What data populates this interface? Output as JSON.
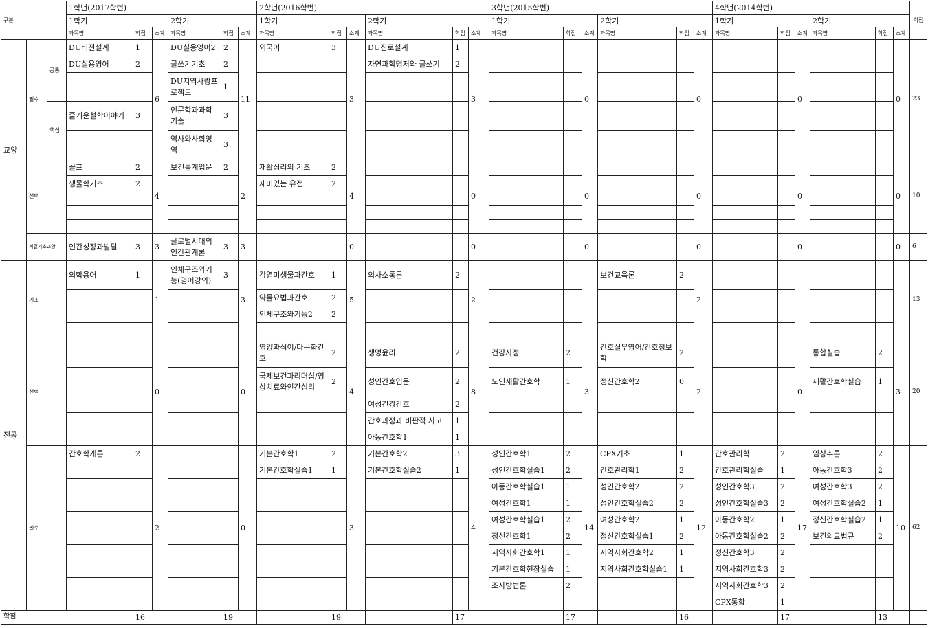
{
  "header": {
    "division": "구분",
    "total_credit": "학점",
    "years": [
      "1학년(2017학번)",
      "2학년(2016학번)",
      "3학년(2015학번)",
      "4학년(2014학번)"
    ],
    "semesters": [
      "1학기",
      "2학기"
    ],
    "col_name": "과목명",
    "col_credit": "학점",
    "col_subtotal": "소계"
  },
  "labels": {
    "liberal": "교양",
    "major": "전공",
    "required": "필수",
    "common": "공통",
    "core": "핵심",
    "elective": "선택",
    "field_basic": "계열기초교양",
    "basic": "기초"
  },
  "groups": [
    {
      "key": "liberal-required",
      "total": "23",
      "sems": [
        {
          "sub": "6",
          "courses": [
            [
              "DU비전설계",
              "1"
            ],
            [
              "DU실용영어",
              "2"
            ],
            [
              "",
              ""
            ],
            [
              "즐거운철학이야기",
              "3"
            ]
          ]
        },
        {
          "sub": "11",
          "courses": [
            [
              "DU실용영어2",
              "2"
            ],
            [
              "글쓰기기초",
              "2"
            ],
            [
              "DU지역사랑프로젝트",
              "1"
            ],
            [
              "인문학과과학기술",
              "3"
            ],
            [
              "역사와사회영역",
              "3"
            ]
          ]
        },
        {
          "sub": "3",
          "courses": [
            [
              "외국어",
              "3"
            ]
          ]
        },
        {
          "sub": "3",
          "courses": [
            [
              "DU진로설계",
              "1"
            ],
            [
              "자연과학명저와 글쓰기",
              "2"
            ]
          ]
        },
        {
          "sub": "0",
          "courses": []
        },
        {
          "sub": "0",
          "courses": []
        },
        {
          "sub": "0",
          "courses": []
        },
        {
          "sub": "0",
          "courses": []
        }
      ]
    },
    {
      "key": "liberal-elective",
      "total": "10",
      "sems": [
        {
          "sub": "4",
          "courses": [
            [
              "골프",
              "2"
            ],
            [
              "생물학기초",
              "2"
            ]
          ]
        },
        {
          "sub": "2",
          "courses": [
            [
              "보건통계입문",
              "2"
            ]
          ]
        },
        {
          "sub": "4",
          "courses": [
            [
              "재활심리의 기초",
              "2"
            ],
            [
              "재미있는 유전",
              "2"
            ]
          ]
        },
        {
          "sub": "0",
          "courses": []
        },
        {
          "sub": "0",
          "courses": []
        },
        {
          "sub": "0",
          "courses": []
        },
        {
          "sub": "0",
          "courses": []
        },
        {
          "sub": "0",
          "courses": []
        }
      ]
    },
    {
      "key": "field-basic",
      "total": "6",
      "sems": [
        {
          "sub": "3",
          "courses": [
            [
              "인간성장과발달",
              "3"
            ]
          ]
        },
        {
          "sub": "3",
          "courses": [
            [
              "글로벌시대의 인간관계론",
              "3"
            ]
          ]
        },
        {
          "sub": "0",
          "courses": []
        },
        {
          "sub": "0",
          "courses": []
        },
        {
          "sub": "0",
          "courses": []
        },
        {
          "sub": "0",
          "courses": []
        },
        {
          "sub": "0",
          "courses": []
        },
        {
          "sub": "0",
          "courses": []
        }
      ]
    },
    {
      "key": "major-basic",
      "total": "13",
      "sems": [
        {
          "sub": "1",
          "courses": [
            [
              "의학용어",
              "1"
            ]
          ]
        },
        {
          "sub": "3",
          "courses": [
            [
              "인체구조와기능(영어강의)",
              "3"
            ]
          ]
        },
        {
          "sub": "5",
          "courses": [
            [
              "감염미생물과간호",
              "1"
            ],
            [
              "약물요법과간호",
              "2"
            ],
            [
              "인체구조와기능2",
              "2"
            ]
          ]
        },
        {
          "sub": "2",
          "courses": [
            [
              "의사소통론",
              "2"
            ]
          ]
        },
        {
          "sub": "",
          "courses": []
        },
        {
          "sub": "2",
          "courses": [
            [
              "보건교육론",
              "2"
            ]
          ]
        },
        {
          "sub": "",
          "courses": []
        },
        {
          "sub": "",
          "courses": []
        }
      ]
    },
    {
      "key": "major-elective",
      "total": "20",
      "sems": [
        {
          "sub": "0",
          "courses": []
        },
        {
          "sub": "0",
          "courses": []
        },
        {
          "sub": "4",
          "courses": [
            [
              "영양과식이/다문화간호",
              "2"
            ],
            [
              "국제보건과리더십/영상치료와인간심리",
              "2"
            ]
          ]
        },
        {
          "sub": "8",
          "courses": [
            [
              "생명윤리",
              "2"
            ],
            [
              "성인간호입문",
              "2"
            ],
            [
              "여성건강간호",
              "2"
            ],
            [
              "간호과정과 비판적 사고",
              "1"
            ],
            [
              "아동간호학1",
              "1"
            ]
          ]
        },
        {
          "sub": "3",
          "courses": [
            [
              "건강사정",
              "2"
            ],
            [
              "노인재활간호학",
              "1"
            ]
          ]
        },
        {
          "sub": "2",
          "courses": [
            [
              "간호실무영어/간호정보학",
              "2"
            ],
            [
              "정신간호학2",
              "0"
            ]
          ]
        },
        {
          "sub": "0",
          "courses": []
        },
        {
          "sub": "3",
          "courses": [
            [
              "통합실습",
              "2"
            ],
            [
              "재활간호학실습",
              "1"
            ]
          ]
        }
      ]
    },
    {
      "key": "major-required",
      "total": "62",
      "sems": [
        {
          "sub": "2",
          "courses": [
            [
              "간호학개론",
              "2"
            ]
          ]
        },
        {
          "sub": "0",
          "courses": []
        },
        {
          "sub": "3",
          "courses": [
            [
              "기본간호학1",
              "2"
            ],
            [
              "기본간호학실습1",
              "1"
            ]
          ]
        },
        {
          "sub": "4",
          "courses": [
            [
              "기본간호학2",
              "3"
            ],
            [
              "기본간호학실습2",
              "1"
            ]
          ]
        },
        {
          "sub": "14",
          "courses": [
            [
              "성인간호학1",
              "2"
            ],
            [
              "성인간호학실습1",
              "2"
            ],
            [
              "아동간호학실습1",
              "1"
            ],
            [
              "여성간호학1",
              "1"
            ],
            [
              "여성간호학실습1",
              "2"
            ],
            [
              "정신간호학1",
              "2"
            ],
            [
              "지역사회간호학1",
              "1"
            ],
            [
              "기본간호학현장실습",
              "1"
            ],
            [
              "조사방법론",
              "2"
            ]
          ]
        },
        {
          "sub": "12",
          "courses": [
            [
              "CPX기초",
              "1"
            ],
            [
              "간호관리학1",
              "2"
            ],
            [
              "성인간호학2",
              "2"
            ],
            [
              "성인간호학실습2",
              "2"
            ],
            [
              "여성간호학2",
              "1"
            ],
            [
              "정신간호학실습1",
              "2"
            ],
            [
              "지역사회간호학2",
              "1"
            ],
            [
              "지역사회간호학실습1",
              "1"
            ]
          ]
        },
        {
          "sub": "17",
          "courses": [
            [
              "간호관리학",
              "2"
            ],
            [
              "간호관리학실습",
              "1"
            ],
            [
              "성인간호학3",
              "2"
            ],
            [
              "성인간호학실습3",
              "2"
            ],
            [
              "아동간호학2",
              "1"
            ],
            [
              "아동간호학실습2",
              "2"
            ],
            [
              "정신간호학3",
              "2"
            ],
            [
              "지역사회간호학3",
              "2"
            ],
            [
              "지역사회간호학3",
              "2"
            ],
            [
              "CPX통합",
              "1"
            ]
          ]
        },
        {
          "sub": "10",
          "courses": [
            [
              "임상추론",
              "2"
            ],
            [
              "아동간호학3",
              "2"
            ],
            [
              "여성간호학3",
              "2"
            ],
            [
              "여성간호학실습2",
              "1"
            ],
            [
              "정신간호학실습2",
              "1"
            ],
            [
              "보건의료법규",
              "2"
            ]
          ]
        }
      ]
    }
  ],
  "footer": {
    "label": "학점",
    "semester_totals": [
      "16",
      "19",
      "19",
      "17",
      "17",
      "16",
      "17",
      "13"
    ]
  }
}
